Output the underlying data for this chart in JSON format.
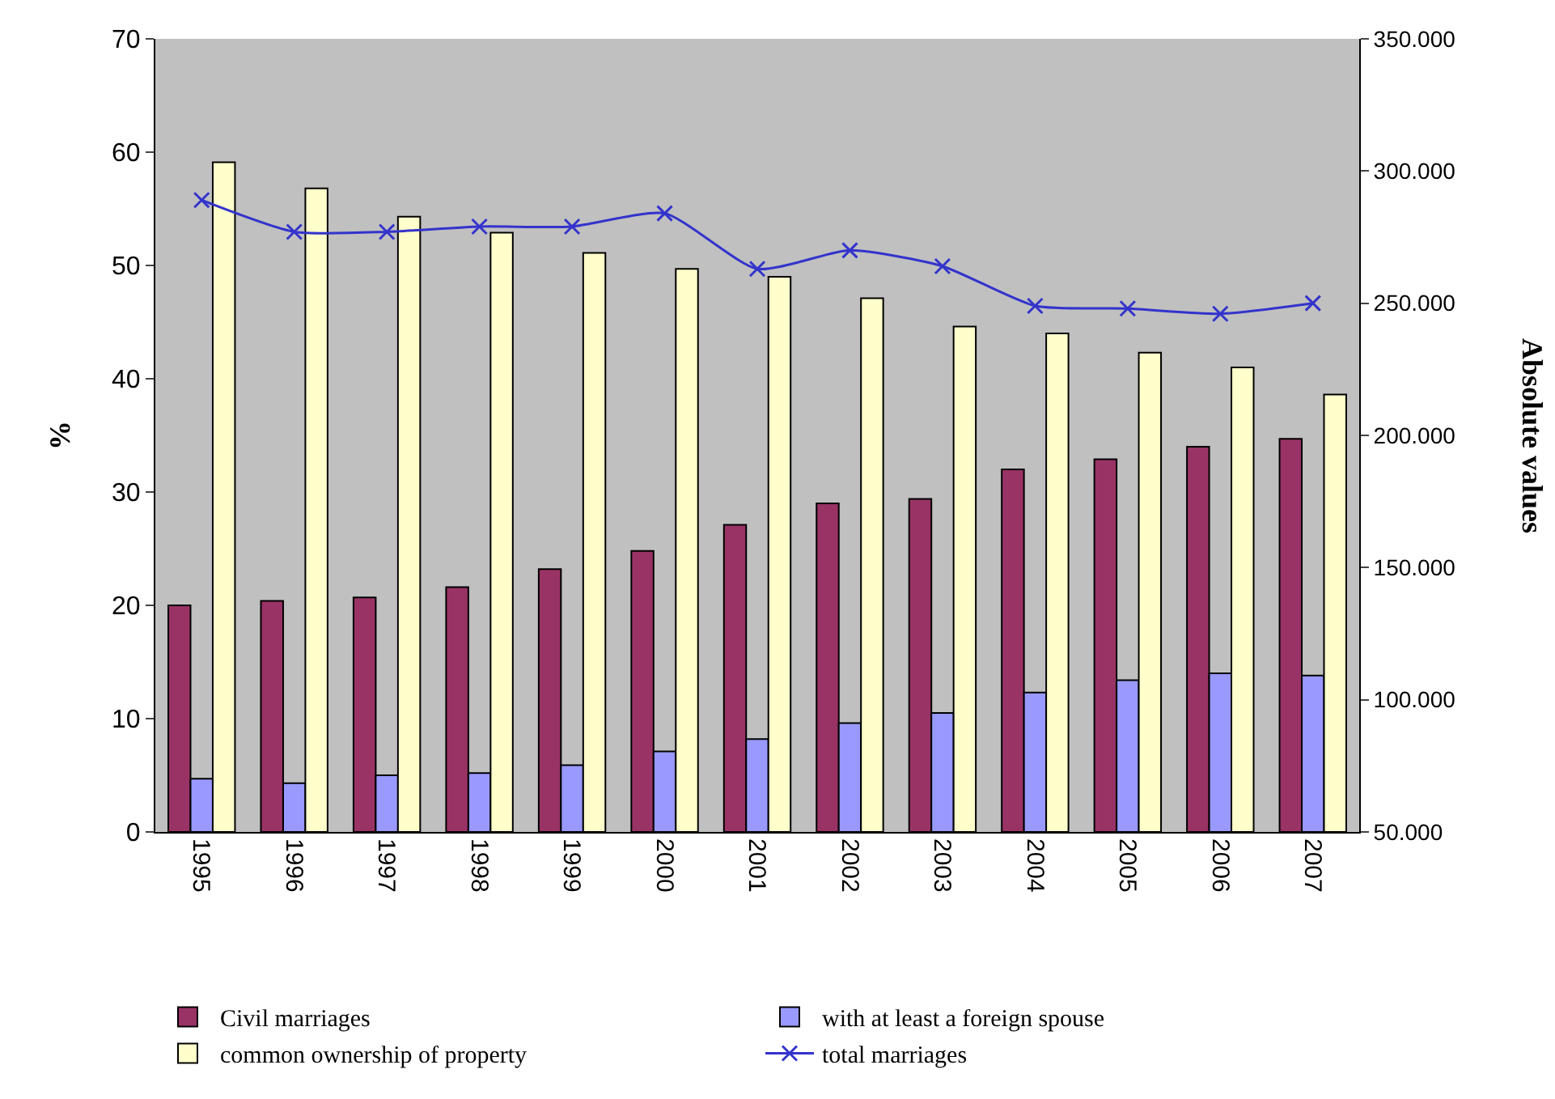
{
  "chart_data": {
    "type": "bar",
    "categories": [
      "1995",
      "1996",
      "1997",
      "1998",
      "1999",
      "2000",
      "2001",
      "2002",
      "2003",
      "2004",
      "2005",
      "2006",
      "2007"
    ],
    "series": [
      {
        "name": "Civil marriages",
        "color": "#993366",
        "values": [
          20,
          20.4,
          20.7,
          21.6,
          23.2,
          24.8,
          27.1,
          29,
          29.4,
          32,
          32.9,
          34,
          34.7
        ]
      },
      {
        "name": "with at least a foreign spouse",
        "color": "#9999ff",
        "values": [
          4.7,
          4.3,
          5,
          5.2,
          5.9,
          7.1,
          8.2,
          9.6,
          10.5,
          12.3,
          13.4,
          14,
          13.8
        ]
      },
      {
        "name": "common ownership of property",
        "color": "#ffffcc",
        "values": [
          59.1,
          56.8,
          54.3,
          52.9,
          51.1,
          49.7,
          49,
          47.1,
          44.6,
          44,
          42.3,
          41,
          38.6
        ]
      },
      {
        "name": "total marriages",
        "type": "line",
        "axis": "y2",
        "color": "#3333cc",
        "marker": "cross",
        "values": [
          289000,
          277000,
          277000,
          279000,
          279000,
          284000,
          263000,
          270000,
          264000,
          249000,
          248000,
          246000,
          250000
        ]
      }
    ],
    "ylabel": "%",
    "y2label": "Absolute values",
    "ylim": [
      0,
      70
    ],
    "yticks": [
      0,
      10,
      20,
      30,
      40,
      50,
      60,
      70
    ],
    "y2lim": [
      50000,
      350000
    ],
    "y2ticks": [
      {
        "value": 50000,
        "label": "50.000"
      },
      {
        "value": 100000,
        "label": "100.000"
      },
      {
        "value": 150000,
        "label": "150.000"
      },
      {
        "value": 200000,
        "label": "200.000"
      },
      {
        "value": 250000,
        "label": "250.000"
      },
      {
        "value": 300000,
        "label": "300.000"
      },
      {
        "value": 350000,
        "label": "350.000"
      }
    ],
    "grid": false,
    "legend": "bottom"
  }
}
